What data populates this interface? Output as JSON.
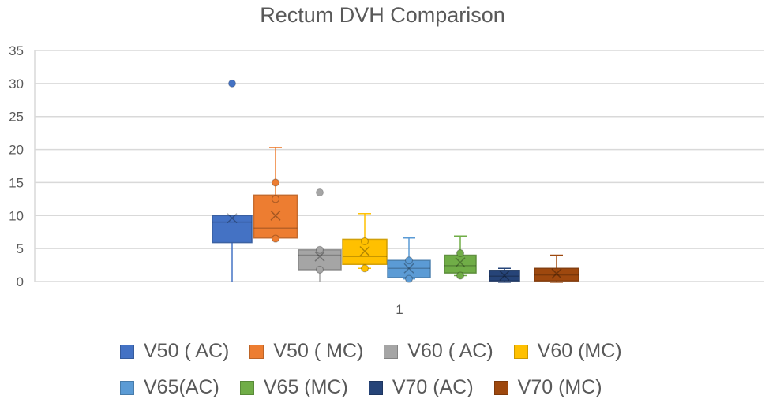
{
  "chart_data": {
    "type": "box",
    "title": "Rectum DVH Comparison",
    "xlabel": "",
    "ylabel": "",
    "categories": [
      "1"
    ],
    "ylim": [
      0,
      35
    ],
    "yticks": [
      0,
      5,
      10,
      15,
      20,
      25,
      30,
      35
    ],
    "grid": true,
    "legend_position": "bottom",
    "series": [
      {
        "name": "V50 ( AC)",
        "color": "#4472C4",
        "min": 0,
        "q1": 5.9,
        "median": 9.0,
        "q3": 10.0,
        "max": 10.0,
        "mean": 9.6,
        "points": [],
        "outliers": [
          30
        ]
      },
      {
        "name": "V50 ( MC)",
        "color": "#ED7D31",
        "min": 6.5,
        "q1": 6.6,
        "median": 8.1,
        "q3": 13.1,
        "max": 20.3,
        "mean": 10.0,
        "points": [
          6.5,
          12.5,
          15
        ],
        "outliers": []
      },
      {
        "name": "V60 ( AC)",
        "color": "#A5A5A5",
        "min": 0,
        "q1": 1.8,
        "median": 4.0,
        "q3": 4.8,
        "max": 4.8,
        "mean": 3.8,
        "points": [
          1.8,
          4.8
        ],
        "outliers": [
          13.5
        ]
      },
      {
        "name": "V60 (MC)",
        "color": "#FFC000",
        "min": 2.0,
        "q1": 2.6,
        "median": 3.8,
        "q3": 6.4,
        "max": 10.3,
        "mean": 4.6,
        "points": [
          2.0,
          6.1
        ],
        "outliers": []
      },
      {
        "name": "V65(AC)",
        "color": "#5B9BD5",
        "min": 0.4,
        "q1": 0.6,
        "median": 2.0,
        "q3": 3.2,
        "max": 6.6,
        "mean": 2.0,
        "points": [
          0.4,
          3.2
        ],
        "outliers": []
      },
      {
        "name": "V65 (MC)",
        "color": "#70AD47",
        "min": 0.9,
        "q1": 1.3,
        "median": 2.4,
        "q3": 4.0,
        "max": 6.9,
        "mean": 2.9,
        "points": [
          0.9,
          4.3
        ],
        "outliers": []
      },
      {
        "name": "V70 (AC)",
        "color": "#264478",
        "min": -0.1,
        "q1": 0.1,
        "median": 0.8,
        "q3": 1.7,
        "max": 2.0,
        "mean": 0.9,
        "points": [],
        "outliers": []
      },
      {
        "name": "V70 (MC)",
        "color": "#9E480E",
        "min": -0.1,
        "q1": 0.1,
        "median": 1.0,
        "q3": 2.0,
        "max": 4.0,
        "mean": 1.2,
        "points": [],
        "outliers": []
      }
    ]
  }
}
